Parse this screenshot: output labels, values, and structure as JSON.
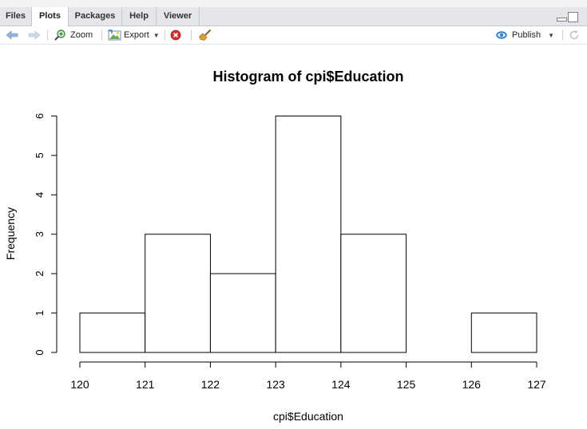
{
  "tabs": [
    {
      "label": "Files",
      "active": false
    },
    {
      "label": "Plots",
      "active": true
    },
    {
      "label": "Packages",
      "active": false
    },
    {
      "label": "Help",
      "active": false
    },
    {
      "label": "Viewer",
      "active": false
    }
  ],
  "toolbar": {
    "back_icon": "arrow-left-icon",
    "forward_icon": "arrow-right-icon",
    "zoom_label": "Zoom",
    "export_label": "Export",
    "remove_icon": "remove-plot-icon",
    "clear_icon": "broom-icon",
    "publish_label": "Publish",
    "refresh_icon": "refresh-icon"
  },
  "chart_data": {
    "type": "histogram",
    "title": "Histogram of cpi$Education",
    "xlabel": "cpi$Education",
    "ylabel": "Frequency",
    "bins": [
      {
        "from": 120,
        "to": 121,
        "count": 1
      },
      {
        "from": 121,
        "to": 122,
        "count": 3
      },
      {
        "from": 122,
        "to": 123,
        "count": 2
      },
      {
        "from": 123,
        "to": 124,
        "count": 6
      },
      {
        "from": 124,
        "to": 125,
        "count": 3
      },
      {
        "from": 125,
        "to": 126,
        "count": 0
      },
      {
        "from": 126,
        "to": 127,
        "count": 1
      }
    ],
    "x_ticks": [
      "120",
      "121",
      "122",
      "123",
      "124",
      "125",
      "126",
      "127"
    ],
    "y_ticks": [
      "0",
      "1",
      "2",
      "3",
      "4",
      "5",
      "6"
    ],
    "xlim": [
      120,
      127
    ],
    "ylim": [
      0,
      6
    ],
    "grid": false,
    "colors": {
      "bar_fill": "#ffffff",
      "bar_stroke": "#000000"
    }
  }
}
